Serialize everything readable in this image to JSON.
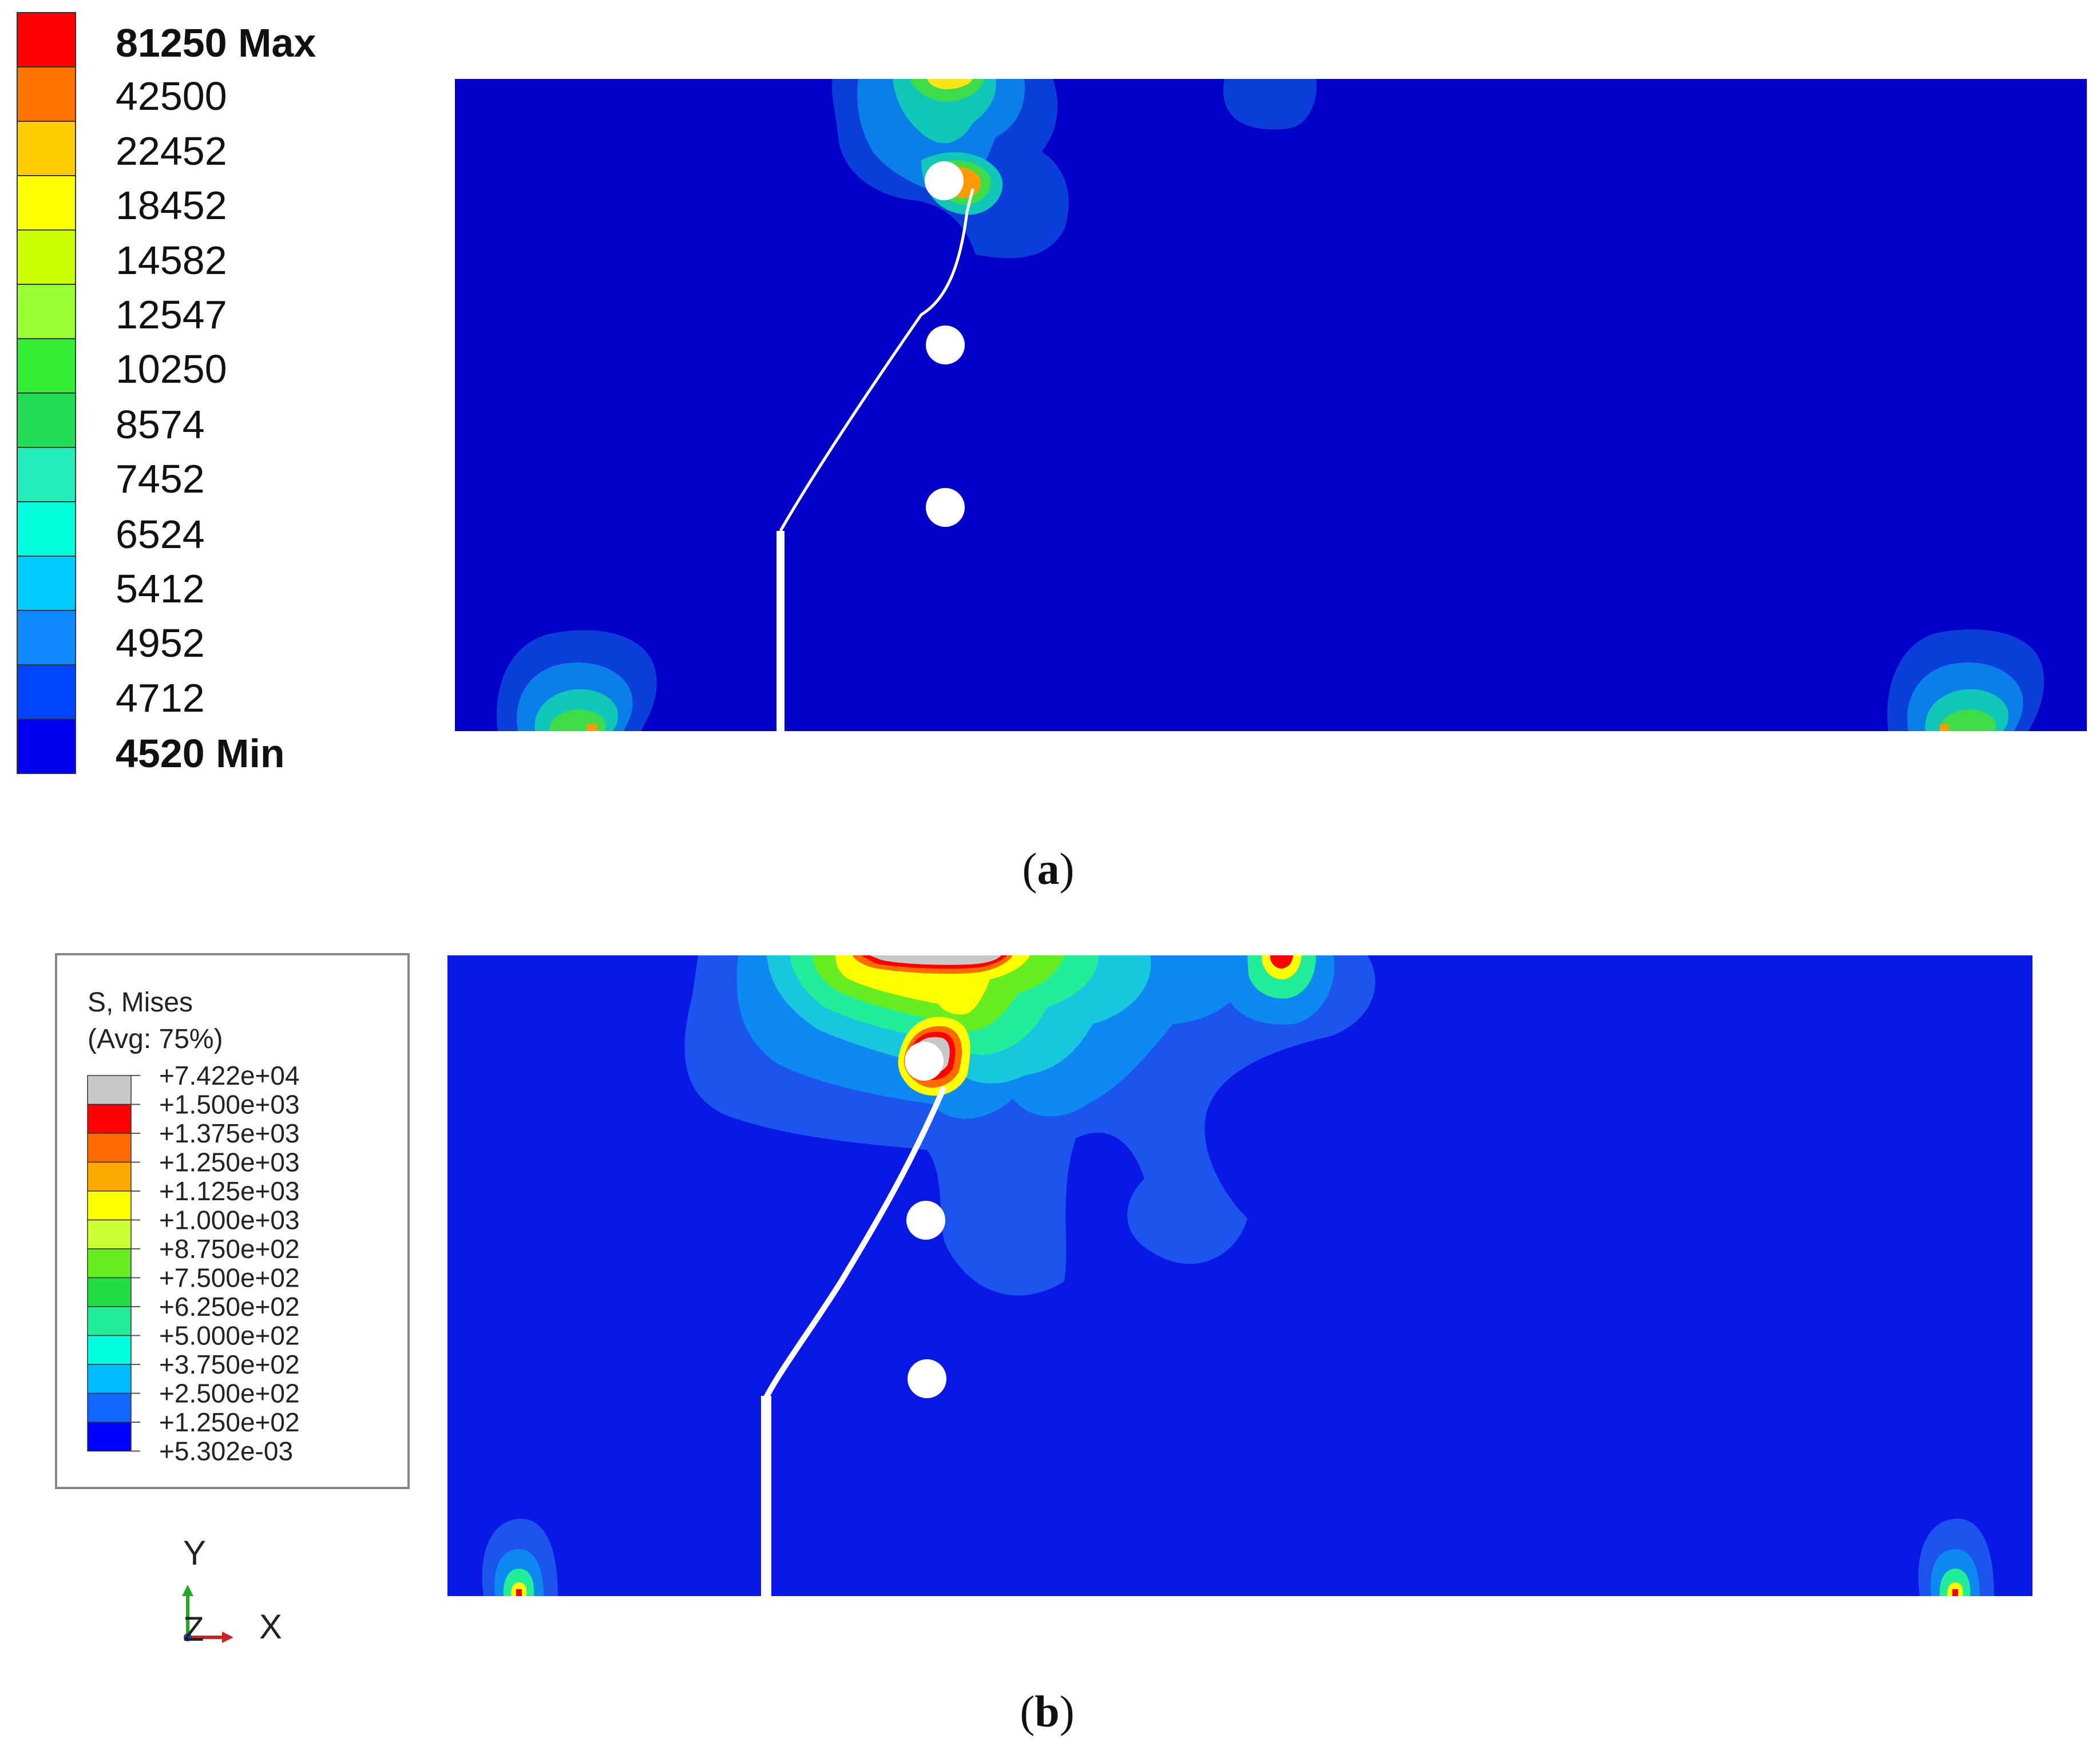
{
  "panel_a": {
    "caption_open": "(",
    "caption_letter": "a",
    "caption_close": ")",
    "legend": {
      "labels": [
        "81250 Max",
        "42500",
        "22452",
        "18452",
        "14582",
        "12547",
        "10250",
        "8574",
        "7452",
        "6524",
        "5412",
        "4952",
        "4712",
        "4520 Min"
      ],
      "colors": [
        "#ff0000",
        "#ff7300",
        "#ffcc00",
        "#ffff00",
        "#ccff00",
        "#99ff33",
        "#33ee33",
        "#22dd55",
        "#22eebb",
        "#00ffdd",
        "#00ccff",
        "#1188ff",
        "#0044ff",
        "#0000ee"
      ]
    }
  },
  "panel_b": {
    "caption_open": "(",
    "caption_letter": "b",
    "caption_close": ")",
    "legend": {
      "title": "S, Mises",
      "subtitle": "(Avg: 75%)",
      "labels": [
        "+7.422e+04",
        "+1.500e+03",
        "+1.375e+03",
        "+1.250e+03",
        "+1.125e+03",
        "+1.000e+03",
        "+8.750e+02",
        "+7.500e+02",
        "+6.250e+02",
        "+5.000e+02",
        "+3.750e+02",
        "+2.500e+02",
        "+1.250e+02",
        "+5.302e-03"
      ],
      "colors": [
        "#c8c8c8",
        "#ff0000",
        "#ff6a00",
        "#ffaa00",
        "#ffff00",
        "#ccff33",
        "#66ee22",
        "#22dd44",
        "#22ee99",
        "#00ffdd",
        "#00bbff",
        "#1166ff",
        "#0000ff"
      ]
    },
    "triad": {
      "y_label": "Y",
      "x_label": "X",
      "z_label": "Z"
    }
  },
  "colors": {
    "base_blue": "#0000c8",
    "base_blue_b": "#0a18e6",
    "hole": "#ffffff",
    "crack": "#ffffff"
  }
}
